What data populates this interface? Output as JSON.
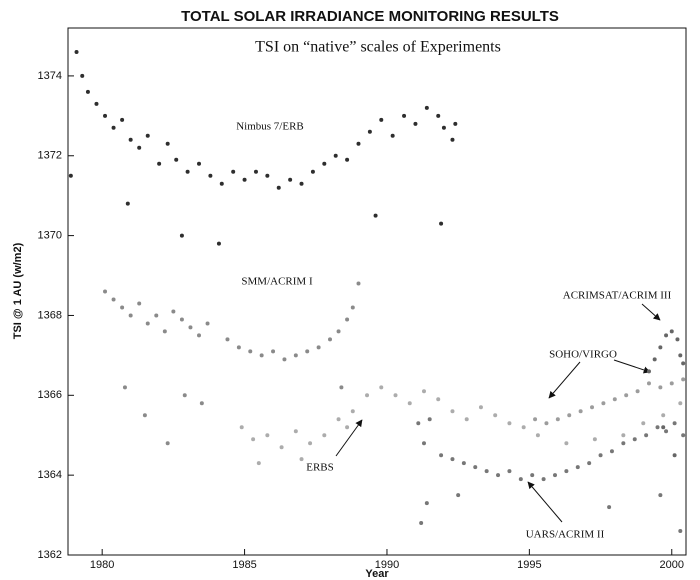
{
  "chart_data": {
    "type": "scatter",
    "title": "TOTAL SOLAR IRRADIANCE MONITORING RESULTS",
    "subtitle": "TSI on “native” scales of Experiments",
    "x_label": "Year",
    "y_label": "TSI @ 1 AU (w/m2)",
    "xlim": [
      1978.8,
      2000.5
    ],
    "ylim": [
      1362,
      1375.2
    ],
    "xticks": [
      1980,
      1985,
      1990,
      1995,
      2000
    ],
    "yticks": [
      1362,
      1364,
      1366,
      1368,
      1370,
      1372,
      1374
    ],
    "series": [
      {
        "name": "Nimbus 7/ERB",
        "color": "#2e2e2e",
        "x": [
          1978.9,
          1979.1,
          1979.3,
          1979.5,
          1979.8,
          1980.1,
          1980.4,
          1980.7,
          1981.0,
          1981.3,
          1981.6,
          1982.0,
          1982.3,
          1982.6,
          1983.0,
          1983.4,
          1983.8,
          1984.2,
          1984.6,
          1985.0,
          1985.4,
          1985.8,
          1986.2,
          1986.6,
          1987.0,
          1987.4,
          1987.8,
          1988.2,
          1988.6,
          1989.0,
          1989.4,
          1989.8,
          1990.2,
          1990.6,
          1991.0,
          1991.4,
          1991.8,
          1992.0,
          1992.3,
          1992.4,
          1980.9,
          1982.8,
          1984.1,
          1989.6,
          1991.9
        ],
        "values": [
          1371.5,
          1374.6,
          1374.0,
          1373.6,
          1373.3,
          1373.0,
          1372.7,
          1372.9,
          1372.4,
          1372.2,
          1372.5,
          1371.8,
          1372.3,
          1371.9,
          1371.6,
          1371.8,
          1371.5,
          1371.3,
          1371.6,
          1371.4,
          1371.6,
          1371.5,
          1371.2,
          1371.4,
          1371.3,
          1371.6,
          1371.8,
          1372.0,
          1371.9,
          1372.3,
          1372.6,
          1372.9,
          1372.5,
          1373.0,
          1372.8,
          1373.2,
          1373.0,
          1372.7,
          1372.4,
          1372.8,
          1370.8,
          1370.0,
          1369.8,
          1370.5,
          1370.3
        ]
      },
      {
        "name": "SMM/ACRIM I",
        "color": "#8a8a8a",
        "x": [
          1980.1,
          1980.4,
          1980.7,
          1981.0,
          1981.3,
          1981.6,
          1981.9,
          1982.2,
          1982.5,
          1982.8,
          1983.1,
          1983.4,
          1983.7,
          1984.4,
          1984.8,
          1985.2,
          1985.6,
          1986.0,
          1986.4,
          1986.8,
          1987.2,
          1987.6,
          1988.0,
          1988.3,
          1988.6,
          1988.8,
          1989.0,
          1980.8,
          1981.5,
          1982.3,
          1982.9,
          1983.5,
          1988.4
        ],
        "values": [
          1368.6,
          1368.4,
          1368.2,
          1368.0,
          1368.3,
          1367.8,
          1368.0,
          1367.6,
          1368.1,
          1367.9,
          1367.7,
          1367.5,
          1367.8,
          1367.4,
          1367.2,
          1367.1,
          1367.0,
          1367.1,
          1366.9,
          1367.0,
          1367.1,
          1367.2,
          1367.4,
          1367.6,
          1367.9,
          1368.2,
          1368.8,
          1366.2,
          1365.5,
          1364.8,
          1366.0,
          1365.8,
          1366.2
        ]
      },
      {
        "name": "ERBS",
        "color": "#acacac",
        "x": [
          1984.9,
          1985.3,
          1985.8,
          1986.3,
          1986.8,
          1987.3,
          1987.8,
          1988.3,
          1988.8,
          1989.3,
          1989.8,
          1990.3,
          1990.8,
          1991.3,
          1991.8,
          1992.3,
          1992.8,
          1993.3,
          1993.8,
          1994.3,
          1994.8,
          1995.3,
          1996.3,
          1997.3,
          1998.3,
          1999.0,
          1999.7,
          2000.3,
          1985.5,
          1987.0,
          1988.6
        ],
        "values": [
          1365.2,
          1364.9,
          1365.0,
          1364.7,
          1365.1,
          1364.8,
          1365.0,
          1365.4,
          1365.6,
          1366.0,
          1366.2,
          1366.0,
          1365.8,
          1366.1,
          1365.9,
          1365.6,
          1365.4,
          1365.7,
          1365.5,
          1365.3,
          1365.2,
          1365.0,
          1364.8,
          1364.9,
          1365.0,
          1365.3,
          1365.5,
          1365.8,
          1364.3,
          1364.4,
          1365.2
        ]
      },
      {
        "name": "UARS/ACRIM II",
        "color": "#777777",
        "x": [
          1991.1,
          1991.3,
          1991.5,
          1991.9,
          1992.3,
          1992.7,
          1993.1,
          1993.5,
          1993.9,
          1994.3,
          1994.7,
          1995.1,
          1995.5,
          1995.9,
          1996.3,
          1996.7,
          1997.1,
          1997.5,
          1997.9,
          1998.3,
          1998.7,
          1999.1,
          1999.5,
          1999.8,
          2000.1,
          2000.4,
          1991.2,
          1991.4,
          1992.5,
          1997.8,
          1999.6,
          2000.3
        ],
        "values": [
          1365.3,
          1364.8,
          1365.4,
          1364.5,
          1364.4,
          1364.3,
          1364.2,
          1364.1,
          1364.0,
          1364.1,
          1363.9,
          1364.0,
          1363.9,
          1364.0,
          1364.1,
          1364.2,
          1364.3,
          1364.5,
          1364.6,
          1364.8,
          1364.9,
          1365.0,
          1365.2,
          1365.1,
          1365.3,
          1365.0,
          1362.8,
          1363.3,
          1363.5,
          1363.2,
          1363.5,
          1362.6
        ]
      },
      {
        "name": "SOHO/VIRGO",
        "color": "#9c9c9c",
        "x": [
          1995.2,
          1995.6,
          1996.0,
          1996.4,
          1996.8,
          1997.2,
          1997.6,
          1998.0,
          1998.4,
          1998.8,
          1999.2,
          1999.6,
          2000.0,
          2000.4
        ],
        "values": [
          1365.4,
          1365.3,
          1365.4,
          1365.5,
          1365.6,
          1365.7,
          1365.8,
          1365.9,
          1366.0,
          1366.1,
          1366.3,
          1366.2,
          1366.3,
          1366.4
        ]
      },
      {
        "name": "ACRIMSAT/ACRIM III",
        "color": "#666666",
        "x": [
          1999.2,
          1999.4,
          1999.6,
          1999.8,
          2000.0,
          2000.2,
          2000.3,
          2000.4,
          1999.7,
          2000.1
        ],
        "values": [
          1366.6,
          1366.9,
          1367.2,
          1367.5,
          1367.6,
          1367.4,
          1367.0,
          1366.8,
          1365.2,
          1364.5
        ]
      }
    ]
  }
}
